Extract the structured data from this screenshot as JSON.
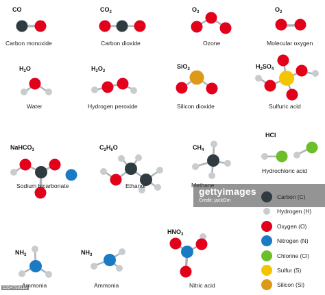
{
  "colors": {
    "carbon": "#2f3b40",
    "hydrogen": "#c9ccce",
    "oxygen": "#e2001a",
    "nitrogen": "#1a7ac4",
    "chlorine": "#6cbf2a",
    "sulfur": "#f5c400",
    "silicon": "#dc9a16",
    "bond": "#aeb3b5"
  },
  "molecules": {
    "co": {
      "sym": "CO",
      "sub": "",
      "sym2": "",
      "sub2": "",
      "name": "Carbon monoxide"
    },
    "co2": {
      "sym": "CO",
      "sub": "2",
      "sym2": "",
      "sub2": "",
      "name": "Carbon dioxide"
    },
    "o3": {
      "sym": "O",
      "sub": "3",
      "sym2": "",
      "sub2": "",
      "name": "Ozone"
    },
    "o2": {
      "sym": "O",
      "sub": "2",
      "sym2": "",
      "sub2": "",
      "name": "Molecular oxygen"
    },
    "h2o": {
      "sym": "H",
      "sub": "2",
      "sym2": "O",
      "sub2": "",
      "name": "Water"
    },
    "h2o2": {
      "sym": "H",
      "sub": "2",
      "sym2": "O",
      "sub2": "2",
      "name": "Hydrogen peroxide"
    },
    "sio2": {
      "sym": "SiO",
      "sub": "2",
      "sym2": "",
      "sub2": "",
      "name": "Silicon dioxide"
    },
    "h2so4": {
      "sym": "H",
      "sub": "2",
      "sym2": "SO",
      "sub2": "4",
      "name": "Sulfuric acid"
    },
    "nahco3": {
      "sym": "NaHCO",
      "sub": "3",
      "sym2": "",
      "sub2": "",
      "name": "Sodium bicarbonate"
    },
    "c2h6o": {
      "sym": "C",
      "sub": "2",
      "sym2": "H",
      "sub2": "6",
      "sym3": "O",
      "name": "Ethanol"
    },
    "ch4": {
      "sym": "CH",
      "sub": "4",
      "sym2": "",
      "sub2": "",
      "name": "Methane"
    },
    "hcl": {
      "sym": "HCl",
      "sub": "",
      "sym2": "",
      "sub2": "",
      "name": "Hydrochloric acid"
    },
    "nh3a": {
      "sym": "NH",
      "sub": "3",
      "sym2": "",
      "sub2": "",
      "name": "Ammonia"
    },
    "nh3b": {
      "sym": "NH",
      "sub": "3",
      "sym2": "",
      "sub2": "",
      "name": "Ammonia"
    },
    "hno3": {
      "sym": "HNO",
      "sub": "3",
      "sym2": "",
      "sub2": "",
      "name": "Nitric acid"
    }
  },
  "legend": [
    {
      "label": "Carbon (C)",
      "color": "carbon"
    },
    {
      "label": "Hydrogen (H)",
      "color": "hydrogen"
    },
    {
      "label": "Oxygen (O)",
      "color": "oxygen"
    },
    {
      "label": "Nitrogen (N)",
      "color": "nitrogen"
    },
    {
      "label": "Chlorine (Cl)",
      "color": "chlorine"
    },
    {
      "label": "Sulfur (S)",
      "color": "sulfur"
    },
    {
      "label": "Silicon (Si)",
      "color": "silicon"
    }
  ],
  "watermark": {
    "brand": "gettyimages",
    "credit": "Credit: jackOm"
  },
  "image_id": "1314750115"
}
